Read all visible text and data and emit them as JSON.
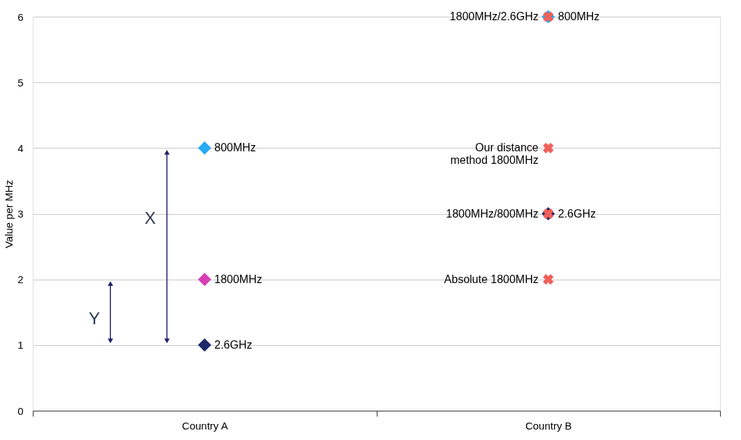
{
  "chart_data": {
    "type": "scatter",
    "ylabel": "Value per MHz",
    "categories": [
      "Country A",
      "Country B"
    ],
    "ylim": [
      0,
      6
    ],
    "yticks": [
      0,
      1,
      2,
      3,
      4,
      5,
      6
    ],
    "grid": "y",
    "series": [
      {
        "name": "800MHz",
        "color": "#29aaf4",
        "marker": "diamond",
        "x": [
          "Country A",
          "Country B"
        ],
        "values": [
          4,
          6
        ]
      },
      {
        "name": "1800MHz",
        "color": "#d63fb5",
        "marker": "diamond",
        "x": [
          "Country A"
        ],
        "values": [
          2
        ]
      },
      {
        "name": "2.6GHz",
        "color": "#1f2a6b",
        "marker": "diamond",
        "x": [
          "Country A",
          "Country B"
        ],
        "values": [
          1,
          3
        ]
      },
      {
        "name": "1800MHz/2.6GHz",
        "color": "#f0605a",
        "marker": "cross",
        "x": [
          "Country B"
        ],
        "values": [
          6
        ]
      },
      {
        "name": "Our distance method 1800MHz",
        "color": "#f0605a",
        "marker": "cross",
        "x": [
          "Country B"
        ],
        "values": [
          4
        ]
      },
      {
        "name": "1800MHz/800MHz",
        "color": "#f0605a",
        "marker": "cross",
        "x": [
          "Country B"
        ],
        "values": [
          3
        ]
      },
      {
        "name": "Absolute 1800MHz",
        "color": "#f0605a",
        "marker": "cross",
        "x": [
          "Country B"
        ],
        "values": [
          2
        ]
      }
    ],
    "annotations": [
      "X",
      "Y"
    ]
  }
}
